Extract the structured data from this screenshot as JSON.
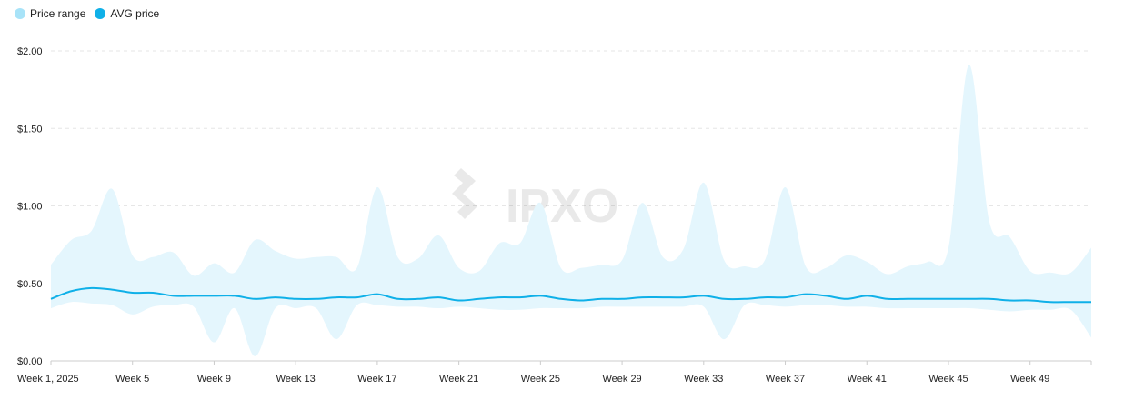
{
  "legend": {
    "items": [
      {
        "label": "Price range",
        "color": "#a8e3f8"
      },
      {
        "label": "AVG price",
        "color": "#0fb0e8"
      }
    ]
  },
  "watermark": "IPXO",
  "colors": {
    "range_fill": "#e4f6fd",
    "avg_line": "#0fb0e8",
    "grid": "#e6e6e6",
    "axis": "#cccccc"
  },
  "chart_data": {
    "type": "area",
    "title": "",
    "xlabel": "",
    "ylabel": "",
    "ylim": [
      0,
      2.0
    ],
    "y_ticks": [
      "$0.00",
      "$0.50",
      "$1.00",
      "$1.50",
      "$2.00"
    ],
    "y_tick_values": [
      0,
      0.5,
      1.0,
      1.5,
      2.0
    ],
    "x_tick_labels": [
      {
        "week": 1,
        "label": "Week 1, 2025"
      },
      {
        "week": 5,
        "label": "Week 5"
      },
      {
        "week": 9,
        "label": "Week 9"
      },
      {
        "week": 13,
        "label": "Week 13"
      },
      {
        "week": 17,
        "label": "Week 17"
      },
      {
        "week": 21,
        "label": "Week 21"
      },
      {
        "week": 25,
        "label": "Week 25"
      },
      {
        "week": 29,
        "label": "Week 29"
      },
      {
        "week": 33,
        "label": "Week 33"
      },
      {
        "week": 37,
        "label": "Week 37"
      },
      {
        "week": 41,
        "label": "Week 41"
      },
      {
        "week": 45,
        "label": "Week 45"
      },
      {
        "week": 49,
        "label": "Week 49"
      }
    ],
    "grid": "horizontal dashed",
    "legend_position": "top-left",
    "weeks": [
      1,
      2,
      3,
      4,
      5,
      6,
      7,
      8,
      9,
      10,
      11,
      12,
      13,
      14,
      15,
      16,
      17,
      18,
      19,
      20,
      21,
      22,
      23,
      24,
      25,
      26,
      27,
      28,
      29,
      30,
      31,
      32,
      33,
      34,
      35,
      36,
      37,
      38,
      39,
      40,
      41,
      42,
      43,
      44,
      45,
      46,
      47,
      48,
      49,
      50,
      51,
      52
    ],
    "series": [
      {
        "name": "Price range",
        "kind": "band",
        "high": [
          0.62,
          0.78,
          0.84,
          1.11,
          0.68,
          0.67,
          0.7,
          0.55,
          0.63,
          0.57,
          0.78,
          0.71,
          0.66,
          0.67,
          0.67,
          0.6,
          1.12,
          0.67,
          0.66,
          0.81,
          0.6,
          0.58,
          0.76,
          0.76,
          1.02,
          0.6,
          0.6,
          0.62,
          0.65,
          1.02,
          0.67,
          0.72,
          1.15,
          0.65,
          0.61,
          0.65,
          1.12,
          0.61,
          0.6,
          0.68,
          0.64,
          0.56,
          0.61,
          0.64,
          0.73,
          1.91,
          0.9,
          0.8,
          0.58,
          0.57,
          0.57,
          0.73
        ],
        "low": [
          0.34,
          0.38,
          0.37,
          0.36,
          0.3,
          0.35,
          0.36,
          0.35,
          0.12,
          0.34,
          0.03,
          0.34,
          0.34,
          0.34,
          0.14,
          0.36,
          0.36,
          0.35,
          0.35,
          0.34,
          0.35,
          0.34,
          0.33,
          0.33,
          0.34,
          0.34,
          0.34,
          0.35,
          0.35,
          0.35,
          0.35,
          0.35,
          0.35,
          0.14,
          0.36,
          0.36,
          0.35,
          0.36,
          0.36,
          0.35,
          0.35,
          0.34,
          0.34,
          0.34,
          0.34,
          0.34,
          0.33,
          0.32,
          0.33,
          0.33,
          0.33,
          0.15
        ]
      },
      {
        "name": "AVG price",
        "kind": "line",
        "values": [
          0.4,
          0.45,
          0.47,
          0.46,
          0.44,
          0.44,
          0.42,
          0.42,
          0.42,
          0.42,
          0.4,
          0.41,
          0.4,
          0.4,
          0.41,
          0.41,
          0.43,
          0.4,
          0.4,
          0.41,
          0.39,
          0.4,
          0.41,
          0.41,
          0.42,
          0.4,
          0.39,
          0.4,
          0.4,
          0.41,
          0.41,
          0.41,
          0.42,
          0.4,
          0.4,
          0.41,
          0.41,
          0.43,
          0.42,
          0.4,
          0.42,
          0.4,
          0.4,
          0.4,
          0.4,
          0.4,
          0.4,
          0.39,
          0.39,
          0.38,
          0.38,
          0.38
        ]
      }
    ]
  }
}
